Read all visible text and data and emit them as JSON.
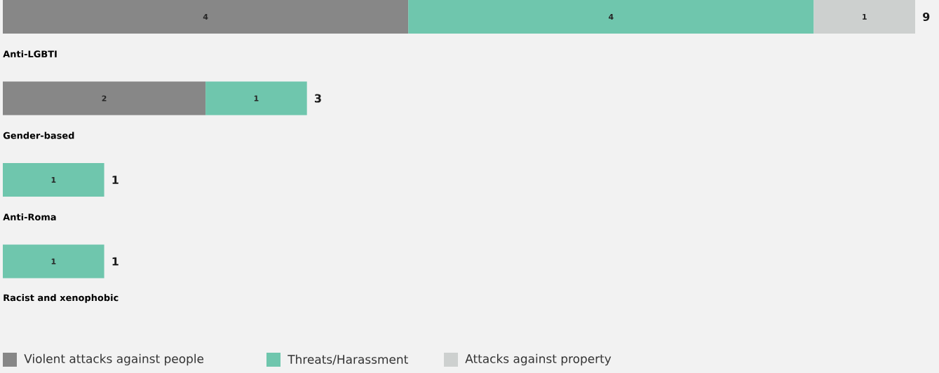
{
  "chart_data": {
    "type": "bar",
    "orientation": "horizontal",
    "stacked": true,
    "categories": [
      "Anti-LGBTI",
      "Gender-based",
      "Anti-Roma",
      "Racist and xenophobic"
    ],
    "series": [
      {
        "name": "Violent attacks against people",
        "color": "#878787",
        "values": [
          4,
          2,
          null,
          null
        ]
      },
      {
        "name": "Threats/Harassment",
        "color": "#6fc6ad",
        "values": [
          4,
          1,
          1,
          1
        ]
      },
      {
        "name": "Attacks against property",
        "color": "#cdd0cf",
        "values": [
          1,
          null,
          null,
          null
        ]
      }
    ],
    "data_labels": true,
    "totals": [
      "9",
      "3",
      "1",
      "1"
    ],
    "legend": "bottom left"
  }
}
